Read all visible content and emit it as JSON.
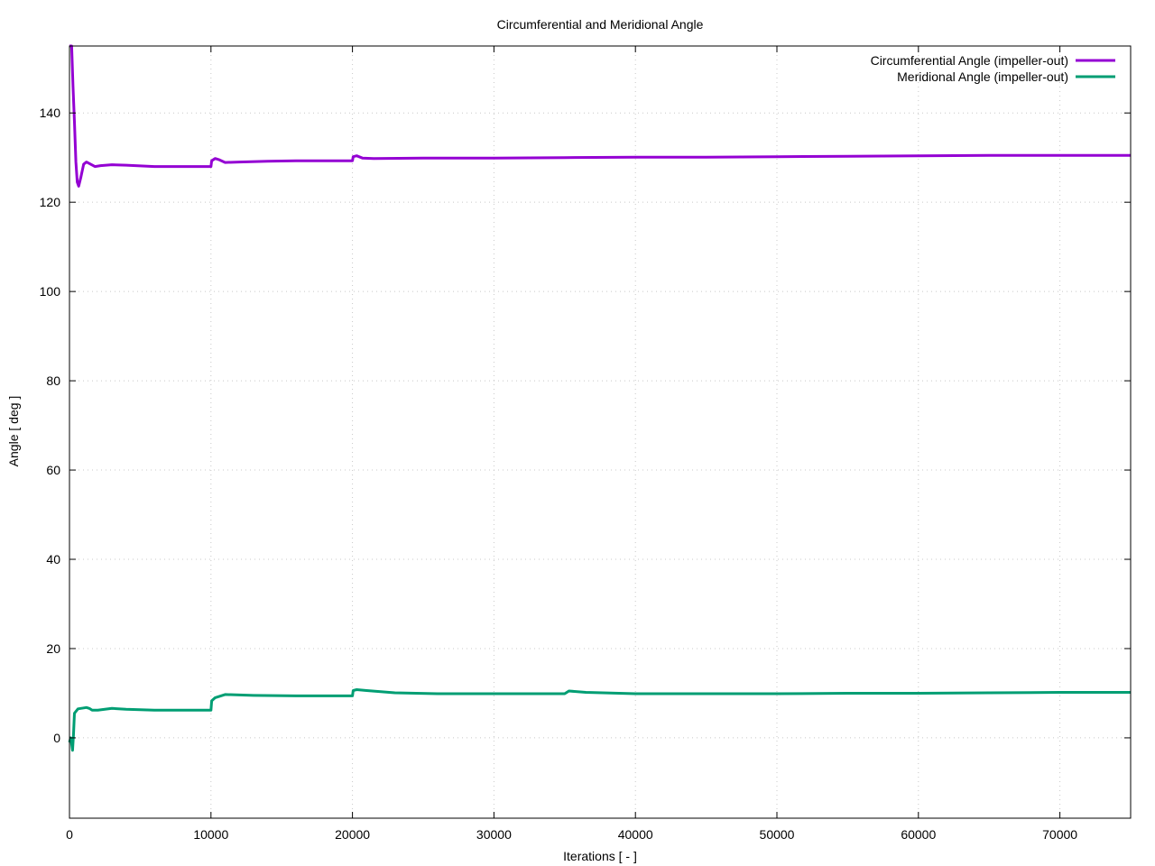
{
  "chart_data": {
    "type": "line",
    "title": "Circumferential and Meridional Angle",
    "xlabel": "Iterations [ - ]",
    "ylabel": "Angle [ deg ]",
    "xlim": [
      0,
      75000
    ],
    "ylim": [
      -18,
      155
    ],
    "xticks": [
      0,
      10000,
      20000,
      30000,
      40000,
      50000,
      60000,
      70000
    ],
    "yticks": [
      0,
      20,
      40,
      60,
      80,
      100,
      120,
      140
    ],
    "grid": true,
    "legend_position": "top-right",
    "series": [
      {
        "name": "Circumferential Angle (impeller-out)",
        "color": "#9400d3",
        "x": [
          0,
          150,
          250,
          350,
          450,
          550,
          650,
          800,
          1000,
          1200,
          1500,
          1800,
          2200,
          3000,
          4000,
          6000,
          8000,
          10000,
          10050,
          10300,
          10600,
          11000,
          12000,
          14000,
          16000,
          18000,
          20000,
          20050,
          20300,
          20700,
          21500,
          25000,
          30000,
          35000,
          40000,
          45000,
          50000,
          55000,
          60000,
          65000,
          70000,
          75000
        ],
        "y": [
          155,
          155,
          146,
          138,
          129,
          124.5,
          123.6,
          125.5,
          128.5,
          129,
          128.5,
          128,
          128.2,
          128.4,
          128.3,
          128,
          128,
          128,
          129.3,
          129.8,
          129.5,
          128.9,
          129,
          129.2,
          129.3,
          129.3,
          129.3,
          130.2,
          130.4,
          129.9,
          129.8,
          129.9,
          129.9,
          130,
          130.1,
          130.1,
          130.2,
          130.3,
          130.4,
          130.5,
          130.5,
          130.5
        ]
      },
      {
        "name": "Meridional Angle (impeller-out)",
        "color": "#009e73",
        "x": [
          0,
          80,
          160,
          220,
          280,
          350,
          450,
          600,
          800,
          1000,
          1200,
          1400,
          1600,
          2000,
          3000,
          4000,
          6000,
          8000,
          10000,
          10050,
          10300,
          10600,
          11000,
          13000,
          16000,
          20000,
          20050,
          20300,
          21000,
          23000,
          26000,
          30000,
          35000,
          35300,
          36500,
          40000,
          45000,
          50000,
          55000,
          60000,
          65000,
          70000,
          75000
        ],
        "y": [
          -1,
          0,
          -1.5,
          -2.8,
          0.5,
          5.5,
          5.9,
          6.5,
          6.6,
          6.7,
          6.8,
          6.6,
          6.2,
          6.2,
          6.6,
          6.4,
          6.2,
          6.2,
          6.2,
          8.3,
          9,
          9.3,
          9.7,
          9.5,
          9.4,
          9.4,
          10.6,
          10.8,
          10.6,
          10.1,
          9.9,
          9.9,
          9.9,
          10.5,
          10.2,
          9.9,
          9.9,
          9.9,
          10,
          10,
          10.1,
          10.2,
          10.2
        ]
      }
    ]
  }
}
